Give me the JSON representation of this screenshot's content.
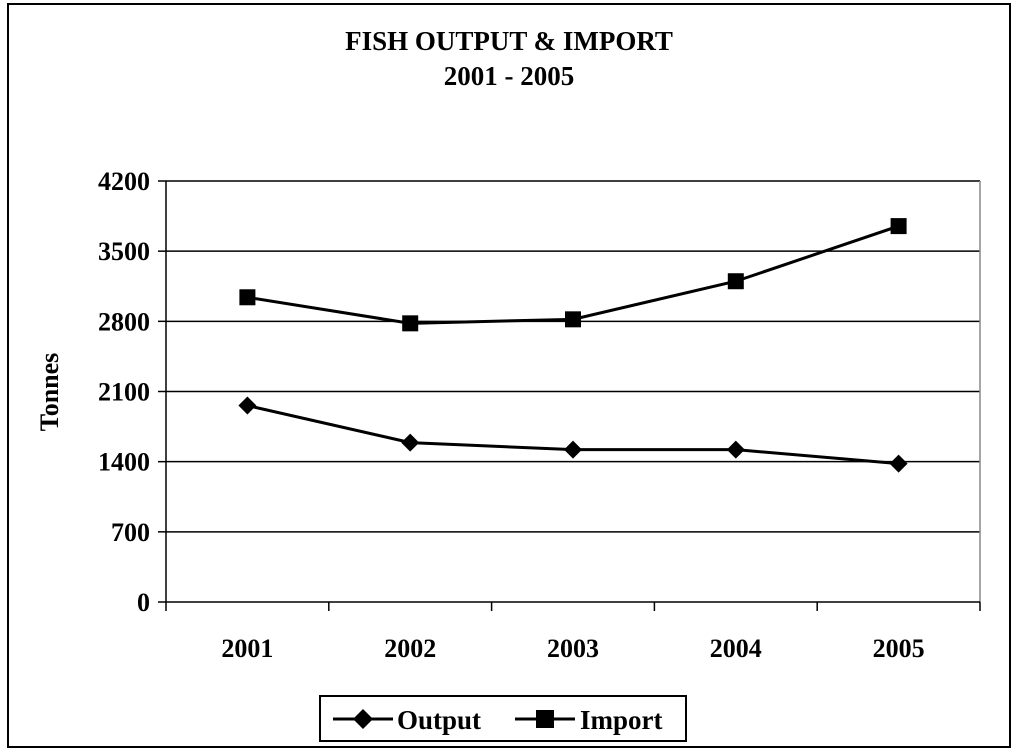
{
  "chart_data": {
    "type": "line",
    "title": "FISH OUTPUT & IMPORT",
    "subtitle": "2001 - 2005",
    "xlabel": "",
    "ylabel": "Tonnes",
    "categories": [
      "2001",
      "2002",
      "2003",
      "2004",
      "2005"
    ],
    "ylim": [
      0,
      4200
    ],
    "yticks": [
      0,
      700,
      1400,
      2100,
      2800,
      3500,
      4200
    ],
    "ytick_labels": [
      "0",
      "700",
      "1400",
      "2100",
      "2800",
      "3500",
      "4200"
    ],
    "grid": true,
    "legend_position": "bottom",
    "series": [
      {
        "name": "Output",
        "marker": "diamond",
        "color": "#000000",
        "values": [
          1960,
          1590,
          1520,
          1520,
          1380
        ]
      },
      {
        "name": "Import",
        "marker": "square",
        "color": "#000000",
        "values": [
          3040,
          2780,
          2820,
          3200,
          3750
        ]
      }
    ]
  }
}
